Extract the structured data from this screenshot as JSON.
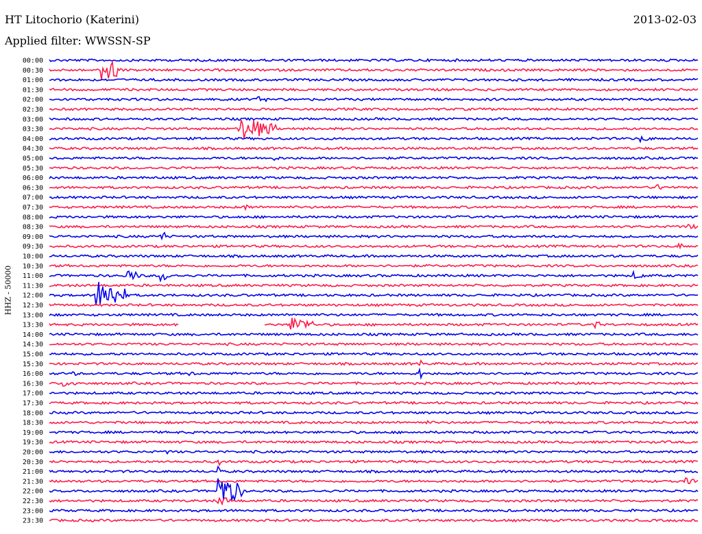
{
  "header": {
    "station": "HT Litochorio (Katerini)",
    "date": "2013-02-03",
    "filter": "Applied filter: WWSSN-SP"
  },
  "channel_label": "HHZ - 50000",
  "chart_data": {
    "type": "line",
    "title": "HT Litochorio (Katerini)",
    "ylabel": "HHZ - 50000",
    "colors": [
      "#0000ee",
      "#ff1a4a"
    ],
    "rows": [
      {
        "time": "00:00",
        "color": "#0000ee",
        "events": []
      },
      {
        "time": "00:30",
        "color": "#ff1a4a",
        "events": [
          {
            "t": 0.08,
            "amp": 22,
            "len": 0.03
          }
        ]
      },
      {
        "time": "01:00",
        "color": "#0000ee",
        "events": []
      },
      {
        "time": "01:30",
        "color": "#ff1a4a",
        "events": []
      },
      {
        "time": "02:00",
        "color": "#0000ee",
        "events": [
          {
            "t": 0.32,
            "amp": 5,
            "len": 0.02
          }
        ]
      },
      {
        "time": "02:30",
        "color": "#ff1a4a",
        "events": [
          {
            "t": 0.66,
            "amp": 3,
            "len": 0.01
          },
          {
            "t": 0.92,
            "amp": 4,
            "len": 0.02
          }
        ]
      },
      {
        "time": "03:00",
        "color": "#0000ee",
        "events": []
      },
      {
        "time": "03:30",
        "color": "#ff1a4a",
        "events": [
          {
            "t": 0.04,
            "amp": 3,
            "len": 0.01
          },
          {
            "t": 0.29,
            "amp": 18,
            "len": 0.06
          }
        ]
      },
      {
        "time": "04:00",
        "color": "#0000ee",
        "events": [
          {
            "t": 0.91,
            "amp": 5,
            "len": 0.02
          }
        ]
      },
      {
        "time": "04:30",
        "color": "#ff1a4a",
        "events": []
      },
      {
        "time": "05:00",
        "color": "#0000ee",
        "events": [
          {
            "t": 0.34,
            "amp": 4,
            "len": 0.02
          }
        ]
      },
      {
        "time": "05:30",
        "color": "#ff1a4a",
        "events": []
      },
      {
        "time": "06:00",
        "color": "#0000ee",
        "events": []
      },
      {
        "time": "06:30",
        "color": "#ff1a4a",
        "events": [
          {
            "t": 0.93,
            "amp": 5,
            "len": 0.03
          }
        ]
      },
      {
        "time": "07:00",
        "color": "#0000ee",
        "events": []
      },
      {
        "time": "07:30",
        "color": "#ff1a4a",
        "events": [
          {
            "t": 0.3,
            "amp": 5,
            "len": 0.015
          }
        ]
      },
      {
        "time": "08:00",
        "color": "#0000ee",
        "events": []
      },
      {
        "time": "08:30",
        "color": "#ff1a4a",
        "events": [
          {
            "t": 0.98,
            "amp": 5,
            "len": 0.02
          }
        ]
      },
      {
        "time": "09:00",
        "color": "#0000ee",
        "events": [
          {
            "t": 0.17,
            "amp": 9,
            "len": 0.015
          }
        ]
      },
      {
        "time": "09:30",
        "color": "#ff1a4a",
        "events": [
          {
            "t": 0.3,
            "amp": 4,
            "len": 0.005
          },
          {
            "t": 0.97,
            "amp": 5,
            "len": 0.01
          }
        ]
      },
      {
        "time": "10:00",
        "color": "#0000ee",
        "events": []
      },
      {
        "time": "10:30",
        "color": "#ff1a4a",
        "events": []
      },
      {
        "time": "11:00",
        "color": "#0000ee",
        "events": [
          {
            "t": 0.12,
            "amp": 10,
            "len": 0.02
          },
          {
            "t": 0.17,
            "amp": 9,
            "len": 0.02
          },
          {
            "t": 0.9,
            "amp": 6,
            "len": 0.02
          }
        ]
      },
      {
        "time": "11:30",
        "color": "#ff1a4a",
        "events": []
      },
      {
        "time": "12:00",
        "color": "#0000ee",
        "events": [
          {
            "t": 0.07,
            "amp": 24,
            "len": 0.05
          },
          {
            "t": 0.32,
            "amp": 3,
            "len": 0.01
          }
        ]
      },
      {
        "time": "12:30",
        "color": "#ff1a4a",
        "events": []
      },
      {
        "time": "13:00",
        "color": "#0000ee",
        "events": []
      },
      {
        "time": "13:30",
        "color": "#ff1a4a",
        "events": [
          {
            "t": 0.37,
            "amp": 12,
            "len": 0.04
          },
          {
            "t": 0.84,
            "amp": 8,
            "len": 0.01
          }
        ]
      },
      {
        "time": "14:00",
        "color": "#0000ee",
        "events": [
          {
            "t": 0.58,
            "amp": 4,
            "len": 0.005
          }
        ]
      },
      {
        "time": "14:30",
        "color": "#ff1a4a",
        "events": []
      },
      {
        "time": "15:00",
        "color": "#0000ee",
        "events": []
      },
      {
        "time": "15:30",
        "color": "#ff1a4a",
        "events": [
          {
            "t": 0.57,
            "amp": 12,
            "len": 0.005
          }
        ]
      },
      {
        "time": "16:00",
        "color": "#0000ee",
        "events": [
          {
            "t": 0.03,
            "amp": 4,
            "len": 0.02
          },
          {
            "t": 0.21,
            "amp": 4,
            "len": 0.02
          },
          {
            "t": 0.57,
            "amp": 12,
            "len": 0.005
          },
          {
            "t": 0.66,
            "amp": 4,
            "len": 0.02
          }
        ]
      },
      {
        "time": "16:30",
        "color": "#ff1a4a",
        "events": [
          {
            "t": 0.02,
            "amp": 5,
            "len": 0.03
          }
        ]
      },
      {
        "time": "17:00",
        "color": "#0000ee",
        "events": []
      },
      {
        "time": "17:30",
        "color": "#ff1a4a",
        "events": []
      },
      {
        "time": "18:00",
        "color": "#0000ee",
        "events": []
      },
      {
        "time": "18:30",
        "color": "#ff1a4a",
        "events": [
          {
            "t": 0.58,
            "amp": 3,
            "len": 0.02
          }
        ]
      },
      {
        "time": "19:00",
        "color": "#0000ee",
        "events": []
      },
      {
        "time": "19:30",
        "color": "#ff1a4a",
        "events": []
      },
      {
        "time": "20:00",
        "color": "#0000ee",
        "events": [
          {
            "t": 0.18,
            "amp": 4,
            "len": 0.01
          }
        ]
      },
      {
        "time": "20:30",
        "color": "#ff1a4a",
        "events": [
          {
            "t": 0.26,
            "amp": 10,
            "len": 0.003
          }
        ]
      },
      {
        "time": "21:00",
        "color": "#0000ee",
        "events": [
          {
            "t": 0.26,
            "amp": 10,
            "len": 0.003
          }
        ]
      },
      {
        "time": "21:30",
        "color": "#ff1a4a",
        "events": [
          {
            "t": 0.98,
            "amp": 5,
            "len": 0.02
          }
        ]
      },
      {
        "time": "22:00",
        "color": "#0000ee",
        "events": [
          {
            "t": 0.26,
            "amp": 24,
            "len": 0.04
          }
        ]
      },
      {
        "time": "22:30",
        "color": "#ff1a4a",
        "events": [
          {
            "t": 0.26,
            "amp": 8,
            "len": 0.02
          }
        ]
      },
      {
        "time": "23:00",
        "color": "#0000ee",
        "events": []
      },
      {
        "time": "23:30",
        "color": "#ff1a4a",
        "events": []
      }
    ],
    "gap": {
      "row": "13:30",
      "start": 0.2,
      "end": 0.33
    }
  }
}
